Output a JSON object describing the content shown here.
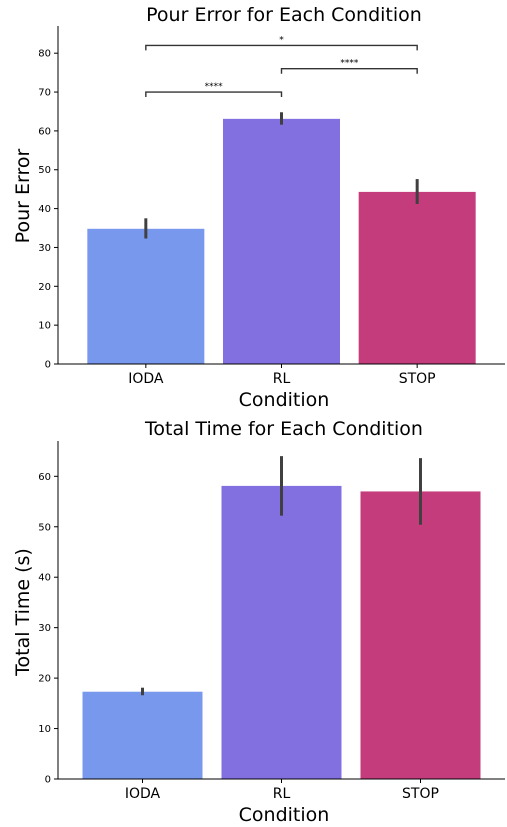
{
  "chart_data": [
    {
      "type": "bar",
      "title": "Pour Error for Each Condition",
      "xlabel": "Condition",
      "ylabel": "Pour Error",
      "categories": [
        "IODA",
        "RL",
        "STOP"
      ],
      "values": [
        34.8,
        63.1,
        44.3
      ],
      "error_low": [
        32.3,
        61.6,
        41.2
      ],
      "error_high": [
        37.5,
        64.8,
        47.6
      ],
      "colors": [
        "#7898ee",
        "#8270e0",
        "#c43c7c"
      ],
      "ylim": [
        0,
        87
      ],
      "yticks": [
        0,
        10,
        20,
        30,
        40,
        50,
        60,
        70,
        80
      ],
      "significance": [
        {
          "from": 0,
          "to": 1,
          "y": 70,
          "label": "****"
        },
        {
          "from": 1,
          "to": 2,
          "y": 76,
          "label": "****"
        },
        {
          "from": 0,
          "to": 2,
          "y": 82,
          "label": "*"
        }
      ],
      "grid": false
    },
    {
      "type": "bar",
      "title": "Total Time for Each Condition",
      "xlabel": "Condition",
      "ylabel": "Total Time (s)",
      "categories": [
        "IODA",
        "RL",
        "STOP"
      ],
      "values": [
        17.3,
        58.1,
        57.0
      ],
      "error_low": [
        16.6,
        52.2,
        50.4
      ],
      "error_high": [
        18.1,
        64.0,
        63.6
      ],
      "colors": [
        "#7898ee",
        "#8270e0",
        "#c43c7c"
      ],
      "ylim": [
        0,
        67
      ],
      "yticks": [
        0,
        10,
        20,
        30,
        40,
        50,
        60
      ],
      "significance": [],
      "grid": false
    }
  ]
}
